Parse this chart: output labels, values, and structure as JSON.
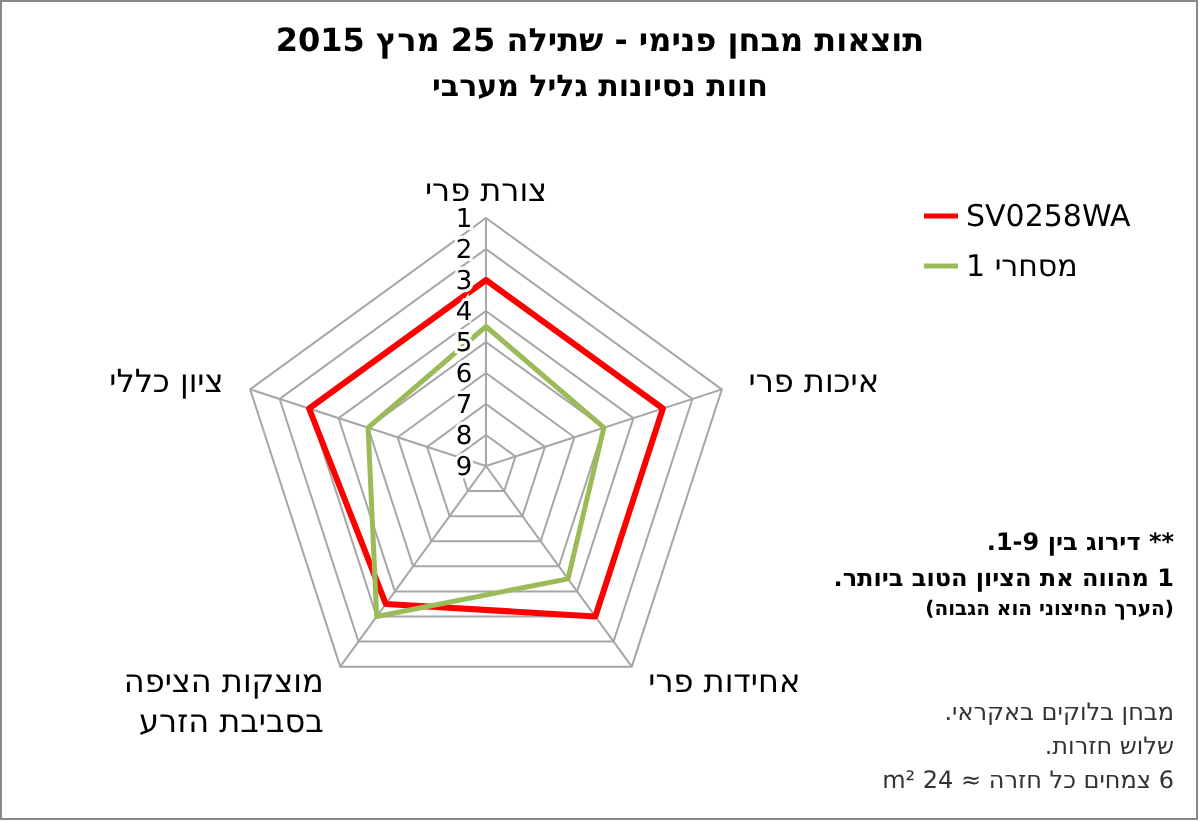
{
  "chart_data": {
    "type": "radar",
    "title": "תוצאות מבחן פנימי - שתילה 25 מרץ 2015",
    "subtitle": "חוות נסיונות גליל מערבי",
    "categories": [
      "צורת פרי",
      "איכות פרי",
      "אחידות פרי",
      "מוצקות הציפה בסביבת הזרע",
      "ציון כללי"
    ],
    "series": [
      {
        "name": "SV0258WA",
        "color": "#ff0000",
        "values": [
          3,
          3,
          3,
          3.5,
          3
        ]
      },
      {
        "name": "מסחרי 1",
        "color": "#9bbb59",
        "values": [
          4.5,
          5,
          4.5,
          3,
          5
        ]
      }
    ],
    "ylim": [
      9,
      1
    ],
    "yticks": [
      1,
      2,
      3,
      4,
      5,
      6,
      7,
      8,
      9
    ],
    "grid": true,
    "legend": "right",
    "annotations": [
      "** דירוג בין 1-9.",
      "1 מהווה את הציון הטוב ביותר.",
      "(הערך החיצוני הוא הגבוה)",
      "מבחן בלוקים באקראי.",
      "שלוש חזרות.",
      "6 צמחים כל חזרה ≈ 24 m²"
    ]
  }
}
